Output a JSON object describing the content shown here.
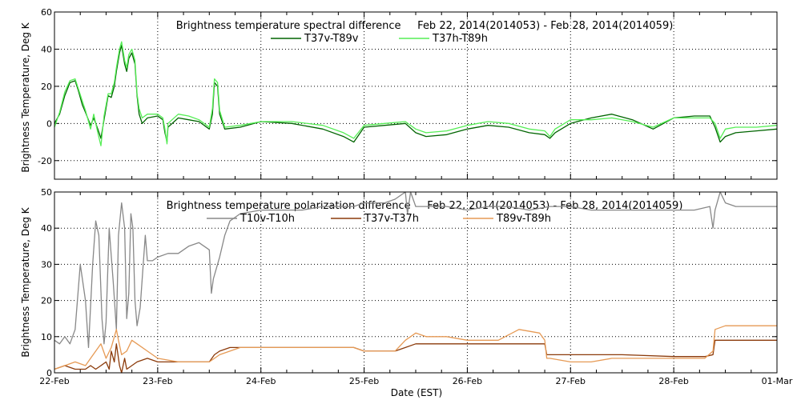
{
  "chart_data": [
    {
      "type": "line",
      "title": "Brightness temperature spectral difference     Feb 22, 2014(2014053) - Feb 28, 2014(2014059)",
      "ylabel": "Brightness Temperature, Deg K",
      "ylim": [
        -30,
        60
      ],
      "yticks": [
        "-20",
        "0",
        "20",
        "40",
        "60"
      ],
      "grid": true,
      "legend_position": "top-center",
      "series": [
        {
          "name": "T37v-T89v",
          "color": "#006400",
          "x": [
            22.0,
            22.05,
            22.1,
            22.15,
            22.2,
            22.23,
            22.27,
            22.3,
            22.35,
            22.38,
            22.42,
            22.45,
            22.48,
            22.52,
            22.55,
            22.58,
            22.6,
            22.63,
            22.65,
            22.68,
            22.7,
            22.72,
            22.75,
            22.78,
            22.8,
            22.82,
            22.85,
            22.9,
            23.0,
            23.05,
            23.07,
            23.09,
            23.1,
            23.2,
            23.3,
            23.4,
            23.5,
            23.53,
            23.55,
            23.58,
            23.6,
            23.65,
            23.8,
            24.0,
            24.3,
            24.6,
            24.8,
            24.9,
            25.0,
            25.2,
            25.4,
            25.5,
            25.6,
            25.8,
            26.0,
            26.2,
            26.4,
            26.6,
            26.75,
            26.8,
            26.85,
            27.0,
            27.2,
            27.4,
            27.6,
            27.8,
            28.0,
            28.2,
            28.35,
            28.4,
            28.45,
            28.5,
            28.6,
            28.8,
            29.0
          ],
          "y": [
            0,
            5,
            15,
            22,
            23,
            18,
            10,
            6,
            -1,
            3,
            -3,
            -8,
            2,
            15,
            14,
            20,
            28,
            38,
            42,
            32,
            28,
            35,
            38,
            32,
            15,
            5,
            0,
            3,
            4,
            2,
            -5,
            -10,
            -2,
            3,
            2,
            1,
            -3,
            5,
            22,
            20,
            5,
            -3,
            -2,
            1,
            0,
            -3,
            -7,
            -10,
            -2,
            -1,
            0,
            -5,
            -7,
            -6,
            -3,
            -1,
            -2,
            -5,
            -6,
            -8,
            -5,
            0,
            3,
            5,
            2,
            -3,
            3,
            4,
            4,
            -2,
            -10,
            -7,
            -5,
            -4,
            -3
          ]
        },
        {
          "name": "T37h-T89h",
          "color": "#55ee55",
          "x": [
            22.0,
            22.05,
            22.1,
            22.15,
            22.2,
            22.23,
            22.27,
            22.3,
            22.35,
            22.38,
            22.42,
            22.45,
            22.48,
            22.52,
            22.55,
            22.58,
            22.6,
            22.63,
            22.65,
            22.68,
            22.7,
            22.72,
            22.75,
            22.78,
            22.8,
            22.82,
            22.85,
            22.9,
            23.0,
            23.05,
            23.07,
            23.09,
            23.1,
            23.2,
            23.3,
            23.4,
            23.5,
            23.53,
            23.55,
            23.58,
            23.6,
            23.65,
            23.8,
            24.0,
            24.3,
            24.6,
            24.8,
            24.9,
            25.0,
            25.2,
            25.4,
            25.5,
            25.6,
            25.8,
            26.0,
            26.2,
            26.4,
            26.6,
            26.75,
            26.8,
            26.85,
            27.0,
            27.2,
            27.4,
            27.6,
            27.8,
            28.0,
            28.2,
            28.35,
            28.4,
            28.45,
            28.5,
            28.6,
            28.8,
            29.0
          ],
          "y": [
            -2,
            6,
            17,
            23,
            24,
            19,
            12,
            7,
            -3,
            5,
            -5,
            -12,
            4,
            16,
            16,
            22,
            30,
            40,
            44,
            34,
            30,
            37,
            40,
            34,
            16,
            8,
            3,
            5,
            5,
            3,
            -3,
            -11,
            0,
            5,
            4,
            2,
            -2,
            8,
            24,
            22,
            7,
            -2,
            -1,
            1,
            1,
            -1,
            -5,
            -8,
            -1,
            0,
            1,
            -3,
            -5,
            -4,
            -1,
            1,
            0,
            -3,
            -4,
            -7,
            -3,
            2,
            2,
            3,
            1,
            -2,
            3,
            3,
            3,
            0,
            -8,
            -3,
            -2,
            -2,
            -1
          ]
        }
      ]
    },
    {
      "type": "line",
      "title": "Brightness temperature polarization difference     Feb 22, 2014(2014053) - Feb 28, 2014(2014059)",
      "ylabel": "Brightness Temperature, Deg K",
      "xlabel": "Date (EST)",
      "ylim": [
        0,
        50
      ],
      "yticks": [
        "0",
        "10",
        "20",
        "30",
        "40",
        "50"
      ],
      "xticks": [
        "22-Feb",
        "23-Feb",
        "24-Feb",
        "25-Feb",
        "26-Feb",
        "27-Feb",
        "28-Feb",
        "01-Mar"
      ],
      "grid": true,
      "legend_position": "top-center",
      "series": [
        {
          "name": "T10v-T10h",
          "color": "#888888",
          "x": [
            22.0,
            22.05,
            22.1,
            22.15,
            22.2,
            22.25,
            22.3,
            22.33,
            22.37,
            22.4,
            22.43,
            22.46,
            22.48,
            22.5,
            22.53,
            22.57,
            22.6,
            22.62,
            22.65,
            22.68,
            22.7,
            22.72,
            22.74,
            22.76,
            22.78,
            22.8,
            22.83,
            22.86,
            22.88,
            22.9,
            22.95,
            23.0,
            23.1,
            23.2,
            23.3,
            23.4,
            23.5,
            23.52,
            23.54,
            23.56,
            23.6,
            23.65,
            23.7,
            23.8,
            24.0,
            24.2,
            24.4,
            24.6,
            24.8,
            24.9,
            25.0,
            25.2,
            25.3,
            25.4,
            25.42,
            25.45,
            25.5,
            25.6,
            25.8,
            26.0,
            26.2,
            26.4,
            26.6,
            26.8,
            27.0,
            27.2,
            27.4,
            27.6,
            27.8,
            28.0,
            28.2,
            28.35,
            28.38,
            28.4,
            28.45,
            28.5,
            28.6,
            28.8,
            29.0
          ],
          "y": [
            9,
            8,
            10,
            8,
            12,
            30,
            20,
            7,
            30,
            42,
            38,
            15,
            8,
            14,
            40,
            25,
            12,
            38,
            47,
            40,
            15,
            22,
            44,
            40,
            20,
            13,
            18,
            30,
            38,
            31,
            31,
            32,
            33,
            33,
            35,
            36,
            34,
            22,
            26,
            28,
            32,
            38,
            42,
            44,
            45,
            45,
            45,
            46,
            46,
            46,
            47,
            47,
            48,
            50,
            44,
            50,
            46,
            46,
            46,
            45,
            46,
            46,
            45,
            46,
            46,
            45,
            45,
            45,
            45,
            45,
            45,
            46,
            40,
            45,
            50,
            47,
            46,
            46,
            46
          ]
        },
        {
          "name": "T37v-T37h",
          "color": "#8B3A0A",
          "x": [
            22.0,
            22.1,
            22.2,
            22.3,
            22.35,
            22.4,
            22.45,
            22.5,
            22.53,
            22.55,
            22.58,
            22.6,
            22.63,
            22.65,
            22.68,
            22.7,
            22.75,
            22.8,
            22.9,
            23.0,
            23.2,
            23.4,
            23.5,
            23.55,
            23.6,
            23.7,
            23.8,
            24.0,
            24.3,
            24.6,
            24.9,
            25.0,
            25.3,
            25.4,
            25.5,
            25.7,
            26.0,
            26.5,
            26.75,
            26.77,
            27.0,
            27.5,
            28.0,
            28.3,
            28.38,
            28.4,
            28.5,
            28.6,
            28.8,
            29.0
          ],
          "y": [
            1,
            2,
            1,
            1,
            2,
            1,
            2,
            3,
            1,
            6,
            3,
            8,
            2,
            0,
            4,
            1,
            2,
            3,
            4,
            3,
            3,
            3,
            3,
            5,
            6,
            7,
            7,
            7,
            7,
            7,
            7,
            6,
            6,
            7,
            8,
            8,
            8,
            8,
            8,
            5,
            5,
            5,
            4.5,
            4.5,
            5,
            9,
            9,
            9,
            9,
            9
          ]
        },
        {
          "name": "T89v-T89h",
          "color": "#E69A55",
          "x": [
            22.0,
            22.1,
            22.2,
            22.3,
            22.35,
            22.4,
            22.45,
            22.5,
            22.55,
            22.6,
            22.62,
            22.65,
            22.7,
            22.75,
            22.8,
            22.9,
            23.0,
            23.2,
            23.5,
            23.6,
            23.8,
            24.0,
            24.3,
            24.6,
            24.9,
            25.0,
            25.3,
            25.4,
            25.45,
            25.5,
            25.6,
            25.8,
            26.0,
            26.3,
            26.5,
            26.7,
            26.75,
            26.77,
            26.8,
            27.0,
            27.2,
            27.4,
            27.6,
            27.8,
            28.0,
            28.2,
            28.3,
            28.38,
            28.4,
            28.5,
            28.6,
            28.8,
            29.0
          ],
          "y": [
            1,
            2,
            3,
            2,
            4,
            6,
            8,
            4,
            7,
            12,
            9,
            5,
            6,
            9,
            8,
            6,
            4,
            3,
            3,
            5,
            7,
            7,
            7,
            7,
            7,
            6,
            6,
            9,
            10,
            11,
            10,
            10,
            9,
            9,
            12,
            11,
            9,
            4,
            4,
            3,
            3,
            4,
            4,
            4,
            4,
            4,
            4,
            6,
            12,
            13,
            13,
            13,
            13
          ]
        }
      ]
    }
  ]
}
